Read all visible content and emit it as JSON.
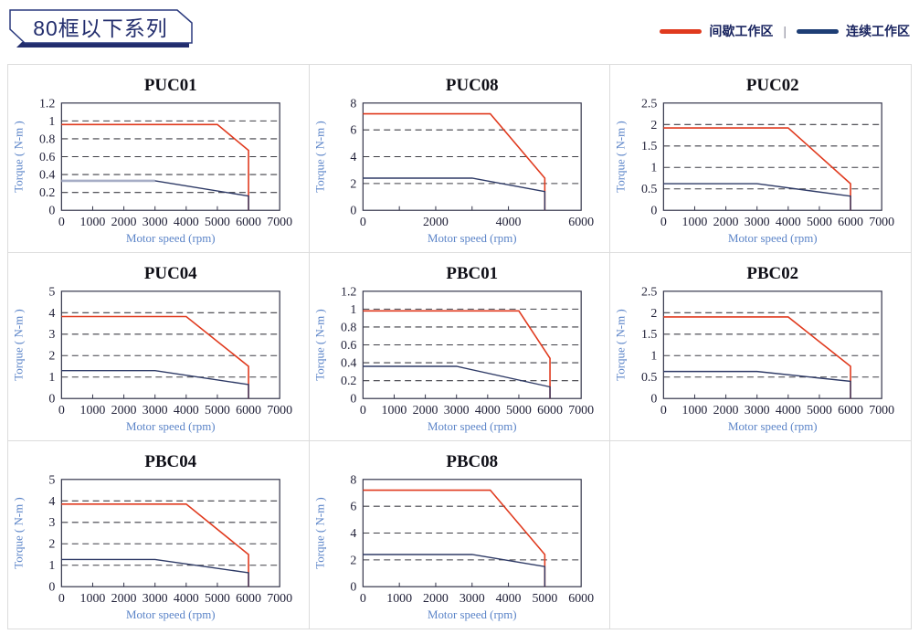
{
  "header": {
    "title": "80框以下系列"
  },
  "legend": {
    "separator": "|",
    "items": [
      {
        "label": "间歇工作区",
        "color": "#e03a1e"
      },
      {
        "label": "连续工作区",
        "color": "#1e3e75"
      }
    ]
  },
  "colors": {
    "intermittent_line": "#e03a1e",
    "continuous_line": "#2e3a66",
    "continuous_flat_light": "#a6adc6",
    "axis_title": "#5b84c8",
    "cell_border": "#dcdcdc",
    "badge_navy": "#222d6d"
  },
  "chart_data": [
    {
      "type": "line",
      "title": "PUC01",
      "xlabel": "Motor speed (rpm)",
      "ylabel": "Torque ( N-m )",
      "xlim": [
        0,
        7000
      ],
      "ylim": [
        0,
        1.2
      ],
      "grid": "dashed-horizontal",
      "legend_position": "page-top-right",
      "xticks": [
        0,
        1000,
        2000,
        3000,
        4000,
        5000,
        6000,
        7000
      ],
      "xtick_labels": [
        "0",
        "1000",
        "2000",
        "3000",
        "4000",
        "5000",
        "6000",
        "7000"
      ],
      "yticks": [
        0,
        0.2,
        0.4,
        0.6,
        0.8,
        1,
        1.2
      ],
      "ytick_labels": [
        "0",
        "0.2",
        "0.4",
        "0.6",
        "0.8",
        "1",
        "1.2"
      ],
      "series": [
        {
          "name": "间歇工作区",
          "color": "#e03a1e",
          "width": 1.6,
          "points": [
            [
              0,
              0.96
            ],
            [
              5000,
              0.96
            ],
            [
              6000,
              0.67
            ],
            [
              6000,
              0
            ]
          ]
        },
        {
          "name": "连续工作区",
          "color": "#2e3a66",
          "width": 1.4,
          "points": [
            [
              0,
              0.33
            ],
            [
              3000,
              0.33
            ],
            [
              6000,
              0.16
            ],
            [
              6000,
              0
            ]
          ]
        },
        {
          "name": "连续工作区",
          "color": "#a6adc6",
          "width": 2.6,
          "points": [
            [
              0,
              0.33
            ],
            [
              3000,
              0.33
            ]
          ]
        }
      ]
    },
    {
      "type": "line",
      "title": "PUC08",
      "xlabel": "Motor speed (rpm)",
      "ylabel": "Torque ( N-m )",
      "xlim": [
        0,
        6000
      ],
      "ylim": [
        0,
        8
      ],
      "grid": "dashed-horizontal",
      "xticks": [
        0,
        1000,
        2000,
        3000,
        4000,
        5000,
        6000
      ],
      "xtick_labels": [
        "0",
        "",
        "2000",
        "",
        "4000",
        "",
        "6000"
      ],
      "yticks": [
        0,
        2,
        4,
        6,
        8
      ],
      "ytick_labels": [
        "0",
        "2",
        "4",
        "6",
        "8"
      ],
      "series": [
        {
          "name": "间歇工作区",
          "color": "#e03a1e",
          "width": 1.6,
          "points": [
            [
              0,
              7.2
            ],
            [
              3500,
              7.2
            ],
            [
              5000,
              2.4
            ],
            [
              5000,
              0
            ]
          ]
        },
        {
          "name": "连续工作区",
          "color": "#2e3a66",
          "width": 1.4,
          "points": [
            [
              0,
              2.4
            ],
            [
              3000,
              2.4
            ],
            [
              5000,
              1.4
            ],
            [
              5000,
              0
            ]
          ]
        }
      ]
    },
    {
      "type": "line",
      "title": "PUC02",
      "xlabel": "Motor speed (rpm)",
      "ylabel": "Torque ( N-m )",
      "xlim": [
        0,
        7000
      ],
      "ylim": [
        0,
        2.5
      ],
      "grid": "dashed-horizontal",
      "xticks": [
        0,
        1000,
        2000,
        3000,
        4000,
        5000,
        6000,
        7000
      ],
      "xtick_labels": [
        "0",
        "1000",
        "2000",
        "3000",
        "4000",
        "5000",
        "6000",
        "7000"
      ],
      "yticks": [
        0,
        0.5,
        1,
        1.5,
        2,
        2.5
      ],
      "ytick_labels": [
        "0",
        "0.5",
        "1",
        "1.5",
        "2",
        "2.5"
      ],
      "series": [
        {
          "name": "间歇工作区",
          "color": "#e03a1e",
          "width": 1.6,
          "points": [
            [
              0,
              1.92
            ],
            [
              4000,
              1.92
            ],
            [
              6000,
              0.62
            ],
            [
              6000,
              0
            ]
          ]
        },
        {
          "name": "连续工作区",
          "color": "#2e3a66",
          "width": 1.4,
          "points": [
            [
              0,
              0.62
            ],
            [
              3000,
              0.62
            ],
            [
              6000,
              0.33
            ],
            [
              6000,
              0
            ]
          ]
        }
      ]
    },
    {
      "type": "line",
      "title": "PUC04",
      "xlabel": "Motor speed (rpm)",
      "ylabel": "Torque ( N-m )",
      "xlim": [
        0,
        7000
      ],
      "ylim": [
        0,
        5
      ],
      "grid": "dashed-horizontal",
      "xticks": [
        0,
        1000,
        2000,
        3000,
        4000,
        5000,
        6000,
        7000
      ],
      "xtick_labels": [
        "0",
        "1000",
        "2000",
        "3000",
        "4000",
        "5000",
        "6000",
        "7000"
      ],
      "yticks": [
        0,
        1,
        2,
        3,
        4,
        5
      ],
      "ytick_labels": [
        "0",
        "1",
        "2",
        "3",
        "4",
        "5"
      ],
      "series": [
        {
          "name": "间歇工作区",
          "color": "#e03a1e",
          "width": 1.6,
          "points": [
            [
              0,
              3.82
            ],
            [
              4000,
              3.82
            ],
            [
              6000,
              1.5
            ],
            [
              6000,
              0
            ]
          ]
        },
        {
          "name": "连续工作区",
          "color": "#2e3a66",
          "width": 1.4,
          "points": [
            [
              0,
              1.3
            ],
            [
              3000,
              1.3
            ],
            [
              6000,
              0.65
            ],
            [
              6000,
              0
            ]
          ]
        }
      ]
    },
    {
      "type": "line",
      "title": "PBC01",
      "xlabel": "Motor speed (rpm)",
      "ylabel": "Torque ( N-m )",
      "xlim": [
        0,
        7000
      ],
      "ylim": [
        0,
        1.2
      ],
      "grid": "dashed-horizontal",
      "xticks": [
        0,
        1000,
        2000,
        3000,
        4000,
        5000,
        6000,
        7000
      ],
      "xtick_labels": [
        "0",
        "1000",
        "2000",
        "3000",
        "4000",
        "5000",
        "6000",
        "7000"
      ],
      "yticks": [
        0,
        0.2,
        0.4,
        0.6,
        0.8,
        1,
        1.2
      ],
      "ytick_labels": [
        "0",
        "0.2",
        "0.4",
        "0.6",
        "0.8",
        "1",
        "1.2"
      ],
      "series": [
        {
          "name": "间歇工作区",
          "color": "#e03a1e",
          "width": 1.6,
          "points": [
            [
              0,
              0.98
            ],
            [
              5000,
              0.98
            ],
            [
              6000,
              0.45
            ],
            [
              6000,
              0
            ]
          ]
        },
        {
          "name": "连续工作区",
          "color": "#2e3a66",
          "width": 1.4,
          "points": [
            [
              0,
              0.36
            ],
            [
              3000,
              0.36
            ],
            [
              6000,
              0.13
            ],
            [
              6000,
              0
            ]
          ]
        }
      ]
    },
    {
      "type": "line",
      "title": "PBC02",
      "xlabel": "Motor speed (rpm)",
      "ylabel": "Torque ( N-m )",
      "xlim": [
        0,
        7000
      ],
      "ylim": [
        0,
        2.5
      ],
      "grid": "dashed-horizontal",
      "xticks": [
        0,
        1000,
        2000,
        3000,
        4000,
        5000,
        6000,
        7000
      ],
      "xtick_labels": [
        "0",
        "1000",
        "2000",
        "3000",
        "4000",
        "5000",
        "6000",
        "7000"
      ],
      "yticks": [
        0,
        0.5,
        1,
        1.5,
        2,
        2.5
      ],
      "ytick_labels": [
        "0",
        "0.5",
        "1",
        "1.5",
        "2",
        "2.5"
      ],
      "series": [
        {
          "name": "间歇工作区",
          "color": "#e03a1e",
          "width": 1.6,
          "points": [
            [
              0,
              1.9
            ],
            [
              4000,
              1.9
            ],
            [
              6000,
              0.75
            ],
            [
              6000,
              0
            ]
          ]
        },
        {
          "name": "连续工作区",
          "color": "#2e3a66",
          "width": 1.4,
          "points": [
            [
              0,
              0.63
            ],
            [
              3000,
              0.63
            ],
            [
              6000,
              0.4
            ],
            [
              6000,
              0
            ]
          ]
        }
      ]
    },
    {
      "type": "line",
      "title": "PBC04",
      "xlabel": "Motor speed (rpm)",
      "ylabel": "Torque ( N-m )",
      "xlim": [
        0,
        7000
      ],
      "ylim": [
        0,
        5
      ],
      "grid": "dashed-horizontal",
      "xticks": [
        0,
        1000,
        2000,
        3000,
        4000,
        5000,
        6000,
        7000
      ],
      "xtick_labels": [
        "0",
        "1000",
        "2000",
        "3000",
        "4000",
        "5000",
        "6000",
        "7000"
      ],
      "yticks": [
        0,
        1,
        2,
        3,
        4,
        5
      ],
      "ytick_labels": [
        "0",
        "1",
        "2",
        "3",
        "4",
        "5"
      ],
      "series": [
        {
          "name": "间歇工作区",
          "color": "#e03a1e",
          "width": 1.6,
          "points": [
            [
              0,
              3.85
            ],
            [
              4000,
              3.85
            ],
            [
              6000,
              1.5
            ],
            [
              6000,
              0
            ]
          ]
        },
        {
          "name": "连续工作区",
          "color": "#2e3a66",
          "width": 1.4,
          "points": [
            [
              0,
              1.27
            ],
            [
              3000,
              1.27
            ],
            [
              6000,
              0.65
            ],
            [
              6000,
              0
            ]
          ]
        }
      ]
    },
    {
      "type": "line",
      "title": "PBC08",
      "xlabel": "Motor speed (rpm)",
      "ylabel": "Torque ( N-m )",
      "xlim": [
        0,
        6000
      ],
      "ylim": [
        0,
        8
      ],
      "grid": "dashed-horizontal",
      "xticks": [
        0,
        1000,
        2000,
        3000,
        4000,
        5000,
        6000
      ],
      "xtick_labels": [
        "0",
        "1000",
        "2000",
        "3000",
        "4000",
        "5000",
        "6000"
      ],
      "yticks": [
        0,
        2,
        4,
        6,
        8
      ],
      "ytick_labels": [
        "0",
        "2",
        "4",
        "6",
        "8"
      ],
      "series": [
        {
          "name": "间歇工作区",
          "color": "#e03a1e",
          "width": 1.6,
          "points": [
            [
              0,
              7.2
            ],
            [
              3500,
              7.2
            ],
            [
              5000,
              2.4
            ],
            [
              5000,
              0
            ]
          ]
        },
        {
          "name": "连续工作区",
          "color": "#2e3a66",
          "width": 1.4,
          "points": [
            [
              0,
              2.4
            ],
            [
              3000,
              2.4
            ],
            [
              5000,
              1.5
            ],
            [
              5000,
              0
            ]
          ]
        }
      ]
    }
  ]
}
